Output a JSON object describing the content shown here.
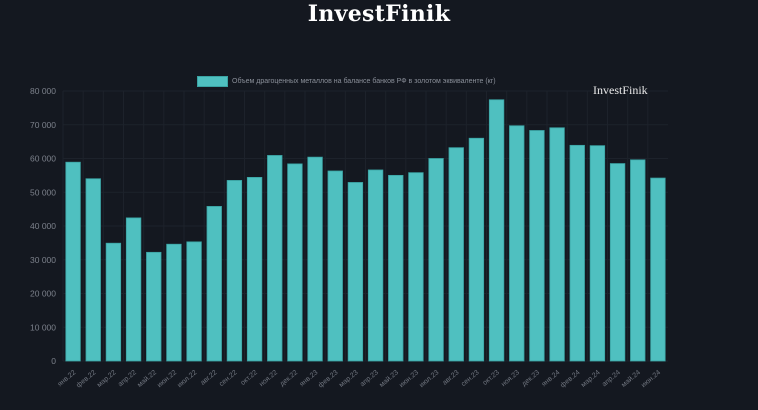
{
  "header": {
    "title": "InvestFinik"
  },
  "watermark": "InvestFinik",
  "colors": {
    "background": "#141820",
    "bar": "#4fc0c0",
    "bar_border": "#3aa3a3",
    "grid": "#1d222b",
    "tick_text": "#7c818b"
  },
  "chart_data": {
    "type": "bar",
    "title": "",
    "legend": [
      "Объем драгоценных металлов на балансе банков РФ в золотом эквиваленте (кг)"
    ],
    "legend_position": "top",
    "xlabel": "",
    "ylabel": "",
    "ylim": [
      0,
      80000
    ],
    "yticks": [
      0,
      10000,
      20000,
      30000,
      40000,
      50000,
      60000,
      70000,
      80000
    ],
    "ytick_labels": [
      "0",
      "10 000",
      "20 000",
      "30 000",
      "40 000",
      "50 000",
      "60 000",
      "70 000",
      "80 000"
    ],
    "grid": true,
    "categories": [
      "янв.22",
      "фев.22",
      "мар.22",
      "апр.22",
      "май.22",
      "июн.22",
      "июл.22",
      "авг.22",
      "сен.22",
      "окт.22",
      "ноя.22",
      "дек.22",
      "янв.23",
      "фев.23",
      "мар.23",
      "апр.23",
      "май.23",
      "июн.23",
      "июл.23",
      "авг.23",
      "сен.23",
      "окт.23",
      "ноя.23",
      "дек.23",
      "янв.24",
      "фев.24",
      "мар.24",
      "апр.24",
      "май.24",
      "июн.24"
    ],
    "series": [
      {
        "name": "Объем драгоценных металлов на балансе банков РФ в золотом эквиваленте (кг)",
        "values": [
          58900,
          54000,
          34900,
          42400,
          32200,
          34600,
          35300,
          45800,
          53500,
          54400,
          60900,
          58400,
          60400,
          56300,
          52900,
          56600,
          55000,
          55800,
          60000,
          63200,
          66000,
          77400,
          69700,
          68300,
          69100,
          63900,
          63800,
          58500,
          59600,
          54200
        ]
      }
    ]
  }
}
